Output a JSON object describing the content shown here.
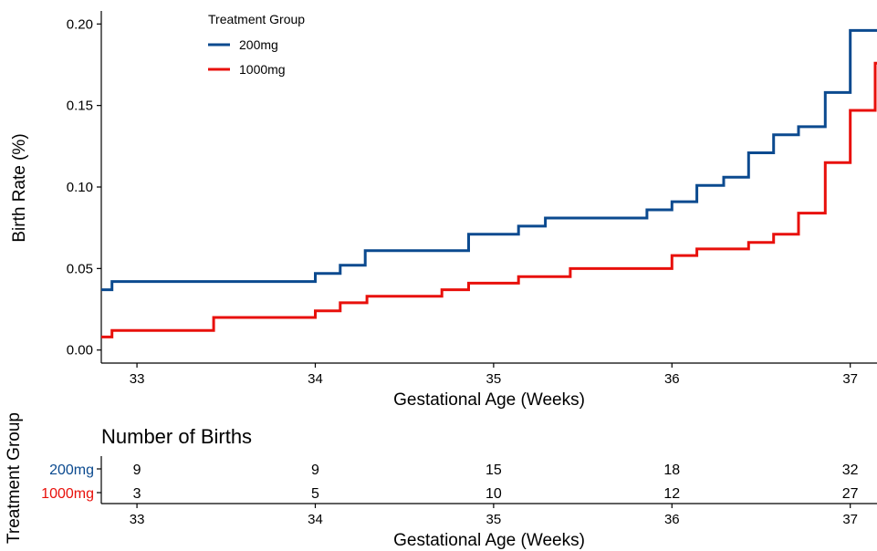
{
  "chart_data": [
    {
      "type": "line",
      "step": true,
      "xlabel": "Gestational Age (Weeks)",
      "ylabel": "Birth Rate (%)",
      "xlim": [
        32.8,
        37.15
      ],
      "ylim": [
        -0.008,
        0.208
      ],
      "xticks": [
        "33",
        "34",
        "35",
        "36",
        "37"
      ],
      "yticks": [
        "0.00",
        "0.05",
        "0.10",
        "0.15",
        "0.20"
      ],
      "grid": false,
      "legend": {
        "title": "Treatment Group",
        "placement": "top-left",
        "entries": [
          "200mg",
          "1000mg"
        ]
      },
      "series": [
        {
          "name": "200mg",
          "color": "#0b4a8f",
          "x": [
            32.8,
            32.86,
            34.0,
            34.14,
            34.28,
            34.86,
            35.14,
            35.29,
            35.86,
            36.0,
            36.14,
            36.29,
            36.43,
            36.57,
            36.71,
            36.86,
            37.0,
            37.15
          ],
          "y": [
            0.037,
            0.042,
            0.047,
            0.052,
            0.061,
            0.071,
            0.076,
            0.081,
            0.086,
            0.091,
            0.101,
            0.106,
            0.121,
            0.132,
            0.137,
            0.158,
            0.196,
            0.196
          ]
        },
        {
          "name": "1000mg",
          "color": "#e8100b",
          "x": [
            32.8,
            32.86,
            33.43,
            34.0,
            34.14,
            34.29,
            34.71,
            34.86,
            35.14,
            35.43,
            36.0,
            36.14,
            36.43,
            36.57,
            36.71,
            36.86,
            37.0,
            37.14,
            37.15
          ],
          "y": [
            0.008,
            0.012,
            0.02,
            0.024,
            0.029,
            0.033,
            0.037,
            0.041,
            0.045,
            0.05,
            0.058,
            0.062,
            0.066,
            0.071,
            0.084,
            0.115,
            0.147,
            0.176,
            0.176
          ]
        }
      ]
    },
    {
      "type": "table",
      "title": "Number of Births",
      "ylabel": "Treatment Group",
      "xlabel": "Gestational Age (Weeks)",
      "x": [
        33,
        34,
        35,
        36,
        37
      ],
      "xticks": [
        "33",
        "34",
        "35",
        "36",
        "37"
      ],
      "rows": [
        {
          "name": "200mg",
          "color": "#0b4a8f",
          "values": [
            "9",
            "9",
            "15",
            "18",
            "32"
          ]
        },
        {
          "name": "1000mg",
          "color": "#e8100b",
          "values": [
            "3",
            "5",
            "10",
            "12",
            "27"
          ]
        }
      ]
    }
  ]
}
